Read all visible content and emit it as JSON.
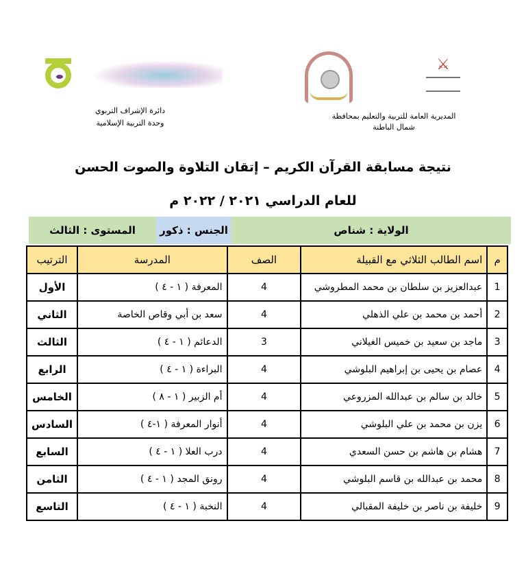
{
  "header": {
    "right_org": "المديرية العامة للتربية والتعليم بمحافظة شمال الباطنة",
    "left_org_line1": "دائرة الإشراف التربوي",
    "left_org_line2": "وحدة التربية الإسلامية",
    "logos": {
      "ministry": "سلطنة عمان وزارة التربية والتعليم",
      "directorate": "شمال الباطنة",
      "vision": "رؤية عمان 2040",
      "quality": "Quality Management System"
    }
  },
  "title": {
    "line1": "نتيجة مسابقة القرآن الكريم – إتقان التلاوة والصوت  الحسن",
    "line2": "للعام الدراسي ٢٠٢١ / ٢٠٢٢ م"
  },
  "info": {
    "wilaya": "الولاية : شناص",
    "gender": "الجنس : ذكور",
    "level": "المستوى : الثالث",
    "colors": {
      "bar": "#c8e0b4",
      "gender_cell": "#c5d9f1",
      "header_row": "#ffe599"
    }
  },
  "table": {
    "headers": [
      "م",
      "اسم الطالب الثلاثي مع القبيلة",
      "الصف",
      "المدرسة",
      "الترتيب"
    ],
    "rows": [
      {
        "num": "1",
        "name": "عبدالعزيز بن سلطان بن محمد المطروشي",
        "grade": "4",
        "school": "المعرفة ( ١ - ٤ )",
        "rank": "الأول"
      },
      {
        "num": "2",
        "name": "أحمد بن محمد بن علي الذهلي",
        "grade": "4",
        "school": "سعد بن أبي وقاص الخاصة",
        "rank": "الثاني"
      },
      {
        "num": "3",
        "name": "ماجد بن سعيد بن خميس الغيلاني",
        "grade": "3",
        "school": "الدعائم ( ١ - ٤ )",
        "rank": "الثالث"
      },
      {
        "num": "4",
        "name": "عصام بن يحيى بن إبراهيم البلوشي",
        "grade": "4",
        "school": "البراءة ( ١ - ٤ )",
        "rank": "الرابع"
      },
      {
        "num": "5",
        "name": "خالد بن سالم بن عبدالله المزروعي",
        "grade": "4",
        "school": "أم الزبير ( ١ - ٨ )",
        "rank": "الخامس"
      },
      {
        "num": "6",
        "name": "يزن بن محمد بن علي البلوشي",
        "grade": "4",
        "school": "أنوار المعرفة ( ١-٤ )",
        "rank": "السادس"
      },
      {
        "num": "7",
        "name": "هشام بن هاشم بن حسن السعدي",
        "grade": "4",
        "school": "درب العلا ( ١ - ٤ )",
        "rank": "السابع"
      },
      {
        "num": "8",
        "name": "محمد بن عبدالله بن قاسم البلوشي",
        "grade": "4",
        "school": "رونق المجد ( ١ - ٤ )",
        "rank": "الثامن"
      },
      {
        "num": "9",
        "name": "خليفة بن ناصر بن خليفة المقبالي",
        "grade": "4",
        "school": "النخبة ( ١ - ٤ )",
        "rank": "التاسع"
      }
    ]
  }
}
